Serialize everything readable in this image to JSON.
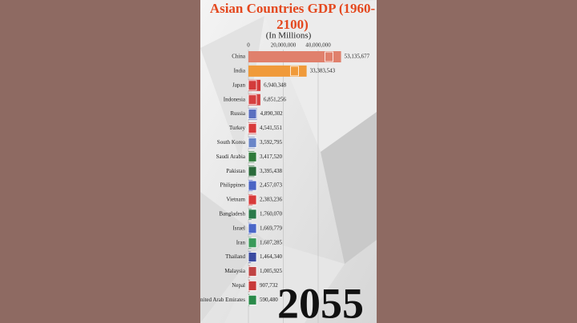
{
  "chart_data": {
    "type": "bar",
    "orientation": "horizontal",
    "title": "Asian Countries GDP (1960-2100)",
    "subtitle": "(In Millions)",
    "year": "2055",
    "categories": [
      "China",
      "India",
      "Japan",
      "Indonesia",
      "Russia",
      "Turkey",
      "South Korea",
      "Saudi Arabia",
      "Pakistan",
      "Philippines",
      "Vietnam",
      "Bangladesh",
      "Israel",
      "Iran",
      "Thailand",
      "Malaysia",
      "Nepal",
      "United Arab Emirates"
    ],
    "values": [
      53135677,
      33383543,
      6940348,
      6851256,
      4890302,
      4541551,
      3592795,
      3417520,
      3395438,
      2457073,
      2383236,
      1760070,
      1669779,
      1607285,
      1464340,
      1005925,
      907732,
      590480
    ],
    "value_labels": [
      "53,135,677",
      "33,383,543",
      "6,940,348",
      "6,851,256",
      "4,890,302",
      "4,541,551",
      "3,592,795",
      "3,417,520",
      "3,395,438",
      "2,457,073",
      "2,383,236",
      "1,760,070",
      "1,669,779",
      "1,607,285",
      "1,464,340",
      "1,005,925",
      "907,732",
      "590,480"
    ],
    "colors": [
      "#e0806c",
      "#f09a3a",
      "#d33a3a",
      "#d64040",
      "#5a6fc0",
      "#d83a3a",
      "#6a86c8",
      "#2f7a3a",
      "#2a6a3a",
      "#4a64c4",
      "#d83a3a",
      "#2a7a4a",
      "#4a66c8",
      "#3a9a5a",
      "#3a4aa0",
      "#c04444",
      "#c83a3a",
      "#2a8a4a"
    ],
    "xlim": [
      0,
      40000000
    ],
    "xticks": [
      0,
      {
        "value": 20000000,
        "label": "20,000,000"
      },
      {
        "value": 40000000,
        "label": "40,000,000"
      }
    ],
    "grid": true
  }
}
